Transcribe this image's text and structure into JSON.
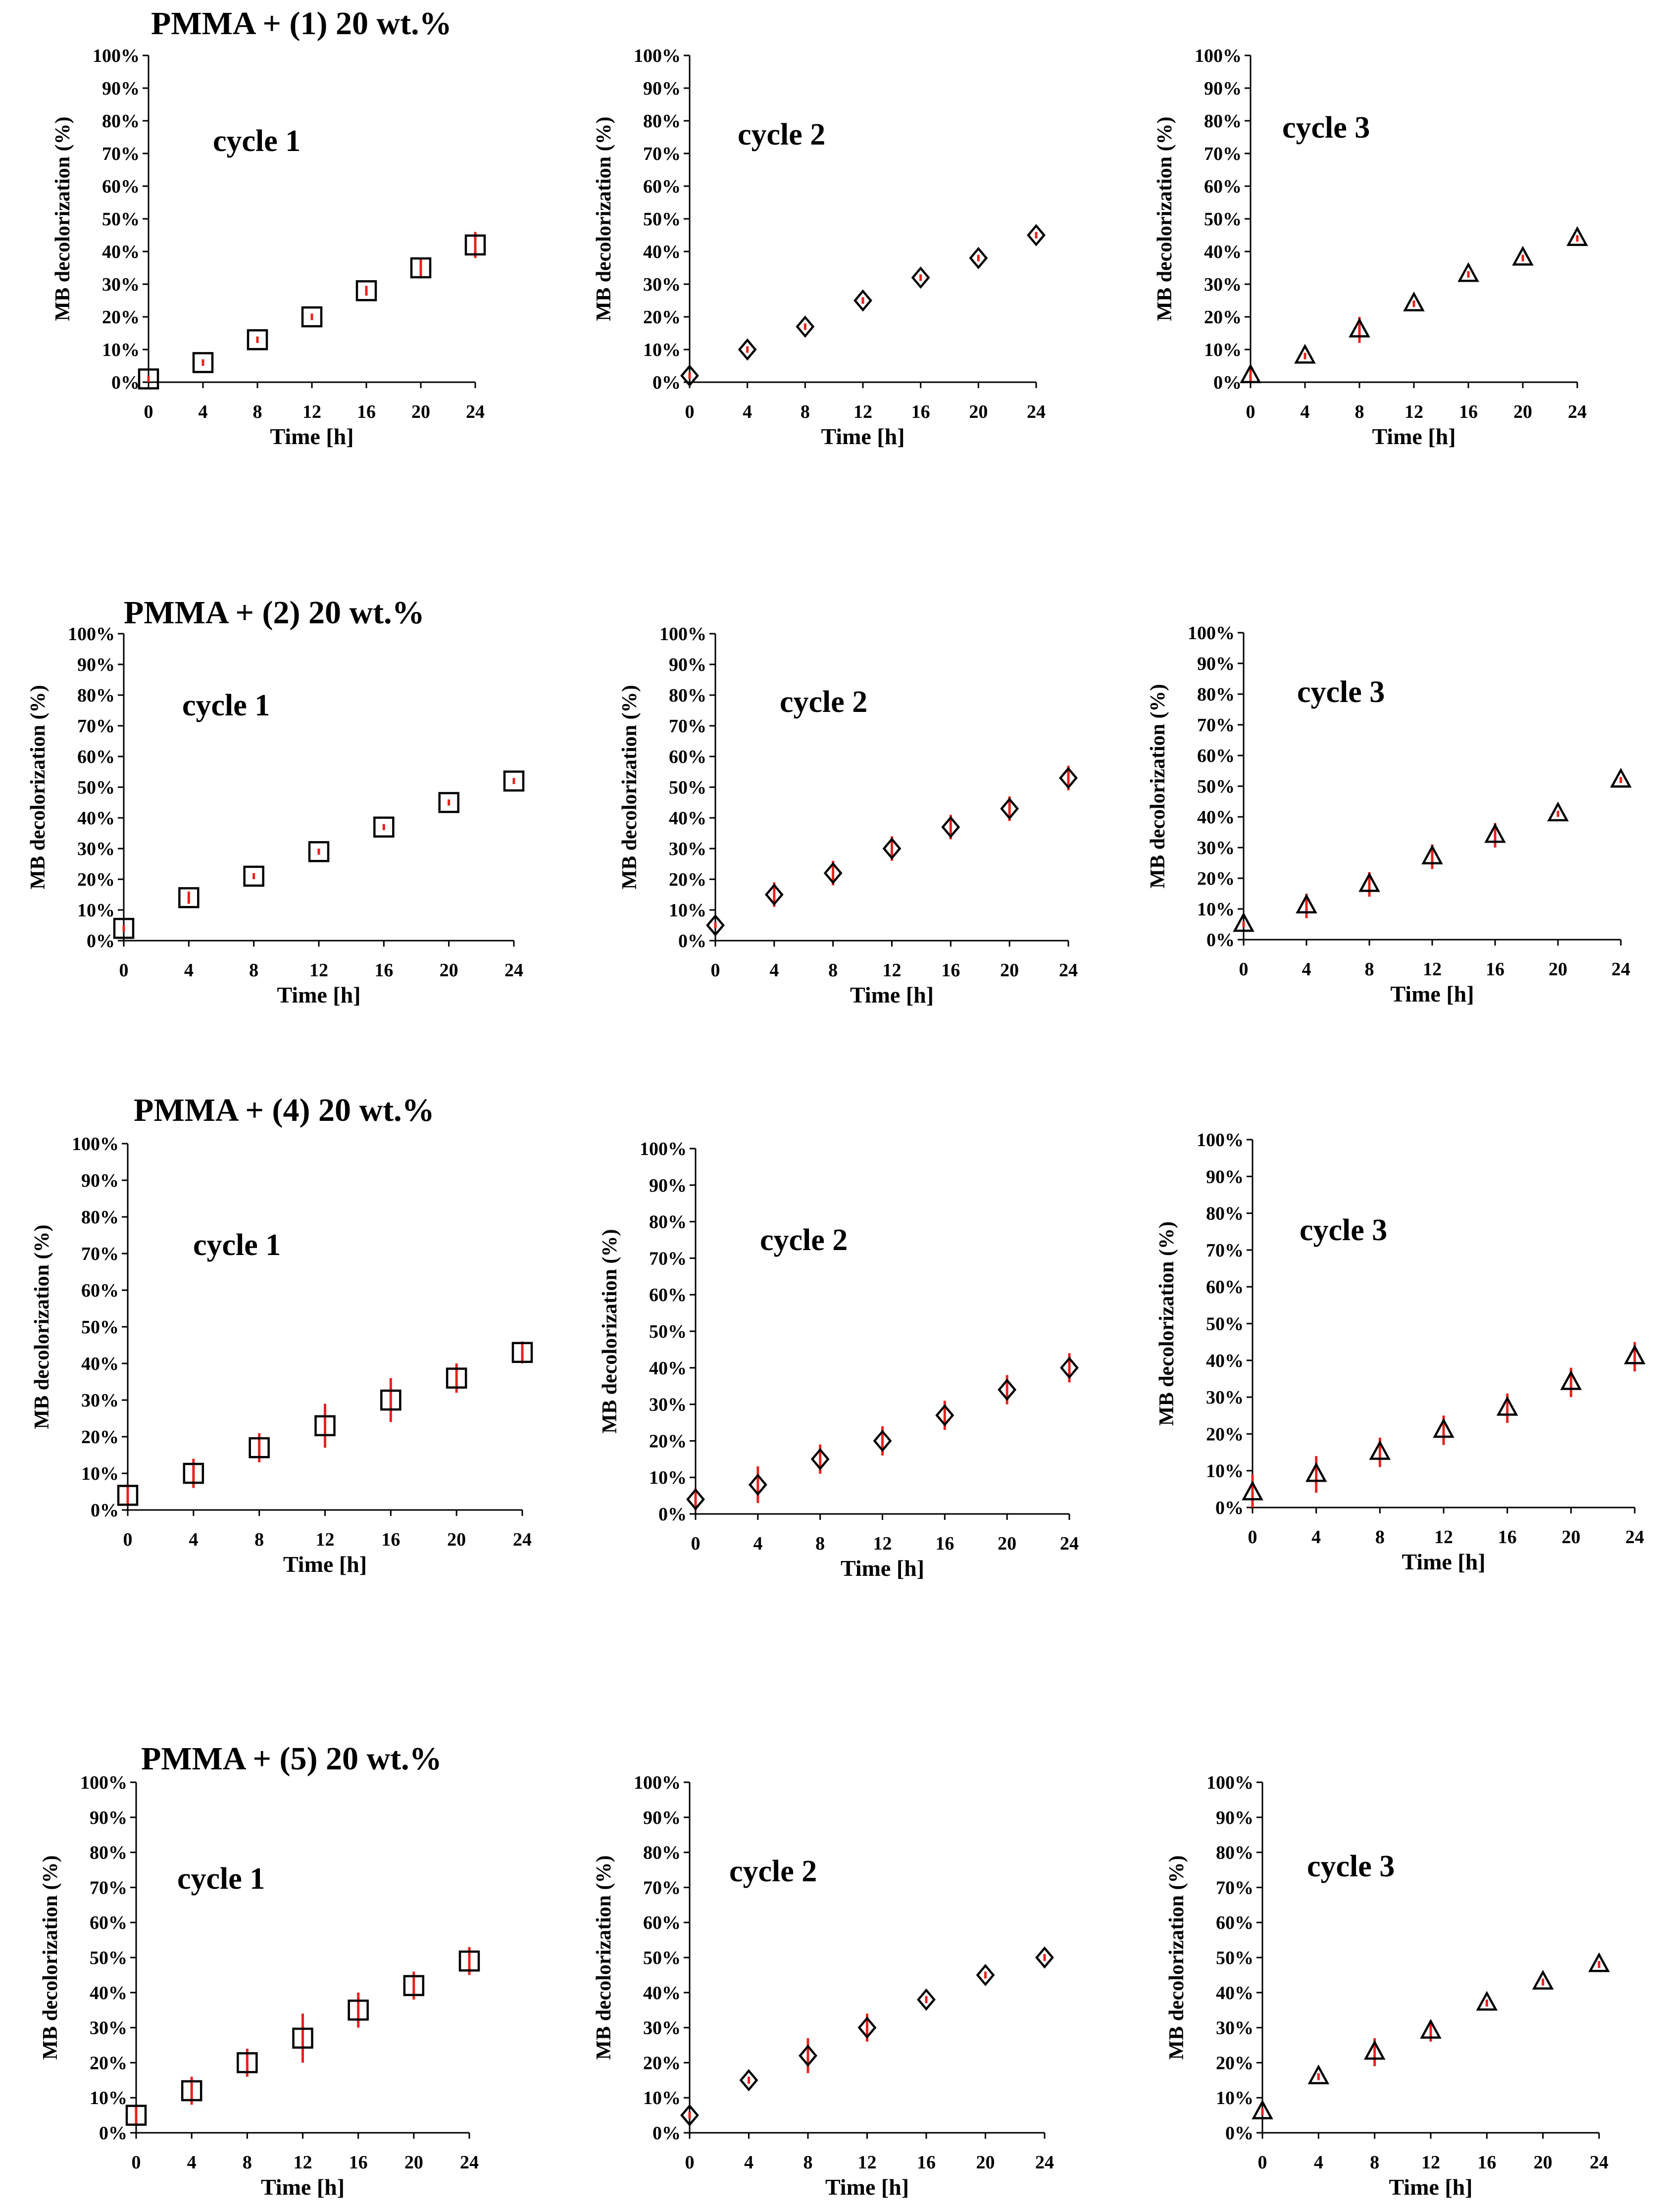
{
  "colors": {
    "axis": "#000000",
    "marker": "#000000",
    "error_bar": "#e8211c",
    "background": "#ffffff"
  },
  "chart_data": [
    {
      "group_title": "PMMA + (1) 20 wt.%",
      "type": "scatter",
      "title": "cycle 1",
      "marker": "square",
      "xlabel": "Time [h]",
      "ylabel": "MB decolorization (%)",
      "x": [
        0,
        4,
        8,
        12,
        16,
        20,
        24
      ],
      "y": [
        1,
        6,
        13,
        20,
        28,
        35,
        42
      ],
      "yerr": [
        1,
        1,
        1,
        1,
        1.5,
        3,
        4
      ],
      "xlim": [
        0,
        24
      ],
      "ylim": [
        0,
        100
      ],
      "x_ticks": [
        "0",
        "4",
        "8",
        "12",
        "16",
        "20",
        "24"
      ],
      "y_ticks": [
        "0%",
        "10%",
        "20%",
        "30%",
        "40%",
        "50%",
        "60%",
        "70%",
        "80%",
        "90%",
        "100%"
      ]
    },
    {
      "type": "scatter",
      "title": "cycle 2",
      "marker": "diamond",
      "xlabel": "Time [h]",
      "ylabel": "MB decolorization (%)",
      "x": [
        0,
        4,
        8,
        12,
        16,
        20,
        24
      ],
      "y": [
        2,
        10,
        17,
        25,
        32,
        38,
        45
      ],
      "yerr": [
        1,
        1,
        1,
        1,
        1,
        1,
        1
      ],
      "xlim": [
        0,
        24
      ],
      "ylim": [
        0,
        100
      ],
      "x_ticks": [
        "0",
        "4",
        "8",
        "12",
        "16",
        "20",
        "24"
      ],
      "y_ticks": [
        "0%",
        "10%",
        "20%",
        "30%",
        "40%",
        "50%",
        "60%",
        "70%",
        "80%",
        "90%",
        "100%"
      ]
    },
    {
      "type": "scatter",
      "title": "cycle 3",
      "marker": "triangle",
      "xlabel": "Time [h]",
      "ylabel": "MB decolorization (%)",
      "x": [
        0,
        4,
        8,
        12,
        16,
        20,
        24
      ],
      "y": [
        2,
        8,
        16,
        24,
        33,
        38,
        44
      ],
      "yerr": [
        2,
        1,
        4,
        1,
        1,
        1,
        1
      ],
      "xlim": [
        0,
        24
      ],
      "ylim": [
        0,
        100
      ],
      "x_ticks": [
        "0",
        "4",
        "8",
        "12",
        "16",
        "20",
        "24"
      ],
      "y_ticks": [
        "0%",
        "10%",
        "20%",
        "30%",
        "40%",
        "50%",
        "60%",
        "70%",
        "80%",
        "90%",
        "100%"
      ]
    },
    {
      "group_title": "PMMA + (2) 20 wt.%",
      "type": "scatter",
      "title": "cycle 1",
      "marker": "square",
      "xlabel": "Time [h]",
      "ylabel": "MB decolorization (%)",
      "x": [
        0,
        4,
        8,
        12,
        16,
        20,
        24
      ],
      "y": [
        4,
        14,
        21,
        29,
        37,
        45,
        52
      ],
      "yerr": [
        1,
        2,
        1,
        1,
        1,
        1,
        1
      ],
      "xlim": [
        0,
        24
      ],
      "ylim": [
        0,
        100
      ],
      "x_ticks": [
        "0",
        "4",
        "8",
        "12",
        "16",
        "20",
        "24"
      ],
      "y_ticks": [
        "0%",
        "10%",
        "20%",
        "30%",
        "40%",
        "50%",
        "60%",
        "70%",
        "80%",
        "90%",
        "100%"
      ]
    },
    {
      "type": "scatter",
      "title": "cycle 2",
      "marker": "diamond",
      "xlabel": "Time [h]",
      "ylabel": "MB decolorization (%)",
      "x": [
        0,
        4,
        8,
        12,
        16,
        20,
        24
      ],
      "y": [
        5,
        15,
        22,
        30,
        37,
        43,
        53
      ],
      "yerr": [
        1,
        4,
        4,
        4,
        4,
        4,
        4
      ],
      "xlim": [
        0,
        24
      ],
      "ylim": [
        0,
        100
      ],
      "x_ticks": [
        "0",
        "4",
        "8",
        "12",
        "16",
        "20",
        "24"
      ],
      "y_ticks": [
        "0%",
        "10%",
        "20%",
        "30%",
        "40%",
        "50%",
        "60%",
        "70%",
        "80%",
        "90%",
        "100%"
      ]
    },
    {
      "type": "scatter",
      "title": "cycle 3",
      "marker": "triangle",
      "xlabel": "Time [h]",
      "ylabel": "MB decolorization (%)",
      "x": [
        0,
        4,
        8,
        12,
        16,
        20,
        24
      ],
      "y": [
        5,
        11,
        18,
        27,
        34,
        41,
        52
      ],
      "yerr": [
        1,
        4,
        4,
        4,
        4,
        1,
        1
      ],
      "xlim": [
        0,
        24
      ],
      "ylim": [
        0,
        100
      ],
      "x_ticks": [
        "0",
        "4",
        "8",
        "12",
        "16",
        "20",
        "24"
      ],
      "y_ticks": [
        "0%",
        "10%",
        "20%",
        "30%",
        "40%",
        "50%",
        "60%",
        "70%",
        "80%",
        "90%",
        "100%"
      ]
    },
    {
      "group_title": "PMMA + (4) 20 wt.%",
      "type": "scatter",
      "title": "cycle 1",
      "marker": "square",
      "xlabel": "Time [h]",
      "ylabel": "MB decolorization (%)",
      "x": [
        0,
        4,
        8,
        12,
        16,
        20,
        24
      ],
      "y": [
        4,
        10,
        17,
        23,
        30,
        36,
        43
      ],
      "yerr": [
        3,
        4,
        4,
        6,
        6,
        4,
        3
      ],
      "xlim": [
        0,
        24
      ],
      "ylim": [
        0,
        100
      ],
      "x_ticks": [
        "0",
        "4",
        "8",
        "12",
        "16",
        "20",
        "24"
      ],
      "y_ticks": [
        "0%",
        "10%",
        "20%",
        "30%",
        "40%",
        "50%",
        "60%",
        "70%",
        "80%",
        "90%",
        "100%"
      ]
    },
    {
      "type": "scatter",
      "title": "cycle 2",
      "marker": "diamond",
      "xlabel": "Time [h]",
      "ylabel": "MB decolorization (%)",
      "x": [
        0,
        4,
        8,
        12,
        16,
        20,
        24
      ],
      "y": [
        4,
        8,
        15,
        20,
        27,
        34,
        40
      ],
      "yerr": [
        3,
        5,
        4,
        4,
        4,
        4,
        4
      ],
      "xlim": [
        0,
        24
      ],
      "ylim": [
        0,
        100
      ],
      "x_ticks": [
        "0",
        "4",
        "8",
        "12",
        "16",
        "20",
        "24"
      ],
      "y_ticks": [
        "0%",
        "10%",
        "20%",
        "30%",
        "40%",
        "50%",
        "60%",
        "70%",
        "80%",
        "90%",
        "100%"
      ]
    },
    {
      "type": "scatter",
      "title": "cycle 3",
      "marker": "triangle",
      "xlabel": "Time [h]",
      "ylabel": "MB decolorization (%)",
      "x": [
        0,
        4,
        8,
        12,
        16,
        20,
        24
      ],
      "y": [
        4,
        9,
        15,
        21,
        27,
        34,
        41
      ],
      "yerr": [
        5,
        5,
        4,
        4,
        4,
        4,
        4
      ],
      "xlim": [
        0,
        24
      ],
      "ylim": [
        0,
        100
      ],
      "x_ticks": [
        "0",
        "4",
        "8",
        "12",
        "16",
        "20",
        "24"
      ],
      "y_ticks": [
        "0%",
        "10%",
        "20%",
        "30%",
        "40%",
        "50%",
        "60%",
        "70%",
        "80%",
        "90%",
        "100%"
      ]
    },
    {
      "group_title": "PMMA + (5) 20 wt.%",
      "type": "scatter",
      "title": "cycle 1",
      "marker": "square",
      "xlabel": "Time [h]",
      "ylabel": "MB decolorization (%)",
      "x": [
        0,
        4,
        8,
        12,
        16,
        20,
        24
      ],
      "y": [
        5,
        12,
        20,
        27,
        35,
        42,
        49
      ],
      "yerr": [
        3,
        4,
        4,
        7,
        5,
        4,
        4
      ],
      "xlim": [
        0,
        24
      ],
      "ylim": [
        0,
        100
      ],
      "x_ticks": [
        "0",
        "4",
        "8",
        "12",
        "16",
        "20",
        "24"
      ],
      "y_ticks": [
        "0%",
        "10%",
        "20%",
        "30%",
        "40%",
        "50%",
        "60%",
        "70%",
        "80%",
        "90%",
        "100%"
      ]
    },
    {
      "type": "scatter",
      "title": "cycle 2",
      "marker": "diamond",
      "xlabel": "Time [h]",
      "ylabel": "MB decolorization (%)",
      "x": [
        0,
        4,
        8,
        12,
        16,
        20,
        24
      ],
      "y": [
        5,
        15,
        22,
        30,
        38,
        45,
        50
      ],
      "yerr": [
        1,
        1,
        5,
        4,
        1,
        1,
        1
      ],
      "xlim": [
        0,
        24
      ],
      "ylim": [
        0,
        100
      ],
      "x_ticks": [
        "0",
        "4",
        "8",
        "12",
        "16",
        "20",
        "24"
      ],
      "y_ticks": [
        "0%",
        "10%",
        "20%",
        "30%",
        "40%",
        "50%",
        "60%",
        "70%",
        "80%",
        "90%",
        "100%"
      ]
    },
    {
      "type": "scatter",
      "title": "cycle 3",
      "marker": "triangle",
      "xlabel": "Time [h]",
      "ylabel": "MB decolorization (%)",
      "x": [
        0,
        4,
        8,
        12,
        16,
        20,
        24
      ],
      "y": [
        6,
        16,
        23,
        29,
        37,
        43,
        48
      ],
      "yerr": [
        1,
        1,
        4,
        3,
        1,
        1,
        1
      ],
      "xlim": [
        0,
        24
      ],
      "ylim": [
        0,
        100
      ],
      "x_ticks": [
        "0",
        "4",
        "8",
        "12",
        "16",
        "20",
        "24"
      ],
      "y_ticks": [
        "0%",
        "10%",
        "20%",
        "30%",
        "40%",
        "50%",
        "60%",
        "70%",
        "80%",
        "90%",
        "100%"
      ]
    }
  ]
}
